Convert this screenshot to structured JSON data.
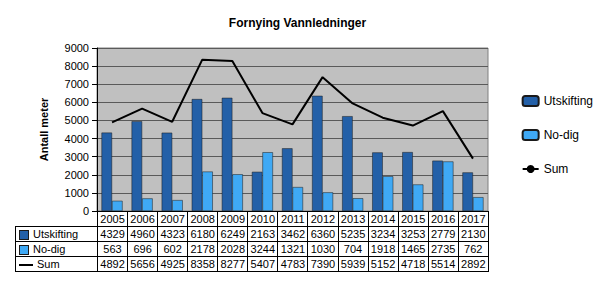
{
  "chart_data": {
    "type": "bar",
    "title": "Fornying Vannledninger",
    "y_label": "Antall meter",
    "categories": [
      "2005",
      "2006",
      "2007",
      "2008",
      "2009",
      "2010",
      "2011",
      "2012",
      "2013",
      "2014",
      "2015",
      "2016",
      "2017"
    ],
    "series": [
      {
        "name": "Utskifting",
        "type": "bar",
        "color": "#2360a8",
        "values": [
          4329,
          4960,
          4323,
          6180,
          6249,
          2163,
          3462,
          6360,
          5235,
          3234,
          3253,
          2779,
          2130
        ]
      },
      {
        "name": "No-dig",
        "type": "bar",
        "color": "#3fa9f5",
        "values": [
          563,
          696,
          602,
          2178,
          2028,
          3244,
          1321,
          1030,
          704,
          1918,
          1465,
          2735,
          762
        ]
      },
      {
        "name": "Sum",
        "type": "line",
        "color": "#000000",
        "values": [
          4892,
          5656,
          4925,
          8358,
          8277,
          5407,
          4783,
          7390,
          5939,
          5152,
          4718,
          5514,
          2892
        ]
      }
    ],
    "ylim": [
      0,
      9000
    ],
    "yticks": [
      0,
      1000,
      2000,
      3000,
      4000,
      5000,
      6000,
      7000,
      8000,
      9000
    ],
    "grid": true,
    "legend": "right"
  }
}
